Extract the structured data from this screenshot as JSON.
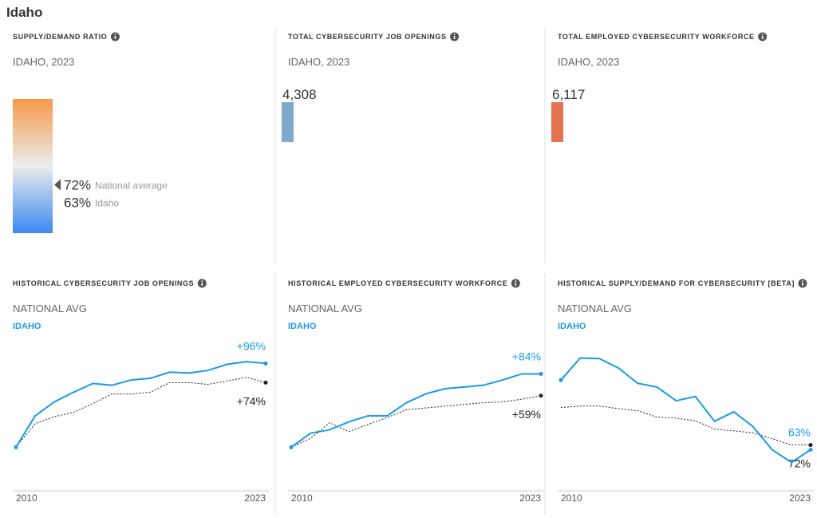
{
  "title": "Idaho",
  "chart_data": [
    {
      "type": "gauge",
      "title": "SUPPLY/DEMAND RATIO",
      "subtitle": "IDAHO, 2023",
      "ylim": [
        0,
        200
      ],
      "colors": [
        "#f59a4a",
        "#ececec",
        "#3a8af0"
      ],
      "markers": [
        {
          "name": "National average",
          "value": 72,
          "label": "72%"
        },
        {
          "name": "Idaho",
          "value": 63,
          "label": "63%"
        }
      ]
    },
    {
      "type": "kpi",
      "title": "TOTAL CYBERSECURITY JOB OPENINGS",
      "subtitle": "IDAHO, 2023",
      "value": 4308,
      "value_label": "4,308",
      "color": "#7ea9cb"
    },
    {
      "type": "kpi",
      "title": "TOTAL EMPLOYED CYBERSECURITY WORKFORCE",
      "subtitle": "IDAHO, 2023",
      "value": 6117,
      "value_label": "6,117",
      "color": "#e5734f"
    },
    {
      "type": "line",
      "title": "HISTORICAL CYBERSECURITY JOB OPENINGS",
      "x": [
        2010,
        2011,
        2012,
        2013,
        2014,
        2015,
        2016,
        2017,
        2018,
        2019,
        2020,
        2021,
        2022,
        2023
      ],
      "xlim": [
        2010,
        2023
      ],
      "xticks": [
        2010,
        2023
      ],
      "ylim": [
        -50,
        110
      ],
      "series": [
        {
          "name": "NATIONAL AVG",
          "color": "#222222",
          "dotted": true,
          "values": [
            0,
            27,
            35,
            40,
            50,
            61,
            61,
            63,
            74,
            74,
            72,
            76,
            80,
            74
          ],
          "value_labels": [
            null,
            null,
            null,
            null,
            null,
            null,
            null,
            null,
            null,
            null,
            null,
            null,
            null,
            "+74%"
          ]
        },
        {
          "name": "IDAHO",
          "color": "#1a9be6",
          "dotted": false,
          "values": [
            0,
            36,
            52,
            63,
            73,
            71,
            77,
            79,
            86,
            85,
            88,
            95,
            98,
            96
          ],
          "value_labels": [
            null,
            null,
            null,
            null,
            null,
            null,
            null,
            null,
            null,
            null,
            null,
            null,
            null,
            "+96%"
          ]
        }
      ]
    },
    {
      "type": "line",
      "title": "HISTORICAL EMPLOYED CYBERSECURITY WORKFORCE",
      "x": [
        2010,
        2011,
        2012,
        2013,
        2014,
        2015,
        2016,
        2017,
        2018,
        2019,
        2020,
        2021,
        2022,
        2023
      ],
      "xlim": [
        2010,
        2023
      ],
      "xticks": [
        2010,
        2023
      ],
      "ylim": [
        -50,
        110
      ],
      "series": [
        {
          "name": "NATIONAL AVG",
          "color": "#222222",
          "dotted": true,
          "values": [
            0,
            10,
            28,
            18,
            26,
            34,
            43,
            45,
            47,
            49,
            51,
            52,
            55,
            59
          ],
          "value_labels": [
            null,
            null,
            null,
            null,
            null,
            null,
            null,
            null,
            null,
            null,
            null,
            null,
            null,
            "+59%"
          ]
        },
        {
          "name": "IDAHO",
          "color": "#1a9be6",
          "dotted": false,
          "values": [
            0,
            16,
            20,
            29,
            36,
            36,
            51,
            61,
            67,
            69,
            71,
            77,
            84,
            84
          ],
          "value_labels": [
            null,
            null,
            null,
            null,
            null,
            null,
            null,
            null,
            null,
            null,
            null,
            null,
            null,
            "+84%"
          ]
        }
      ]
    },
    {
      "type": "line",
      "title": "HISTORICAL SUPPLY/DEMAND FOR CYBERSECURITY [BETA]",
      "x": [
        2010,
        2011,
        2012,
        2013,
        2014,
        2015,
        2016,
        2017,
        2018,
        2019,
        2020,
        2021,
        2022,
        2023
      ],
      "xlim": [
        2010,
        2023
      ],
      "xticks": [
        2010,
        2023
      ],
      "ylim": [
        -15,
        250
      ],
      "series": [
        {
          "name": "NATIONAL AVG",
          "color": "#222222",
          "dotted": true,
          "values": [
            143,
            146,
            146,
            141,
            137,
            125,
            123,
            118,
            102,
            99,
            95,
            84,
            72,
            72
          ],
          "value_labels": [
            null,
            null,
            null,
            null,
            null,
            null,
            null,
            null,
            null,
            null,
            null,
            null,
            null,
            "72%"
          ]
        },
        {
          "name": "IDAHO",
          "color": "#1a9be6",
          "dotted": false,
          "values": [
            195,
            237,
            236,
            218,
            189,
            182,
            156,
            164,
            117,
            135,
            107,
            63,
            39,
            63
          ],
          "value_labels": [
            null,
            null,
            null,
            null,
            null,
            null,
            null,
            null,
            null,
            null,
            null,
            null,
            null,
            "63%"
          ]
        }
      ]
    }
  ]
}
